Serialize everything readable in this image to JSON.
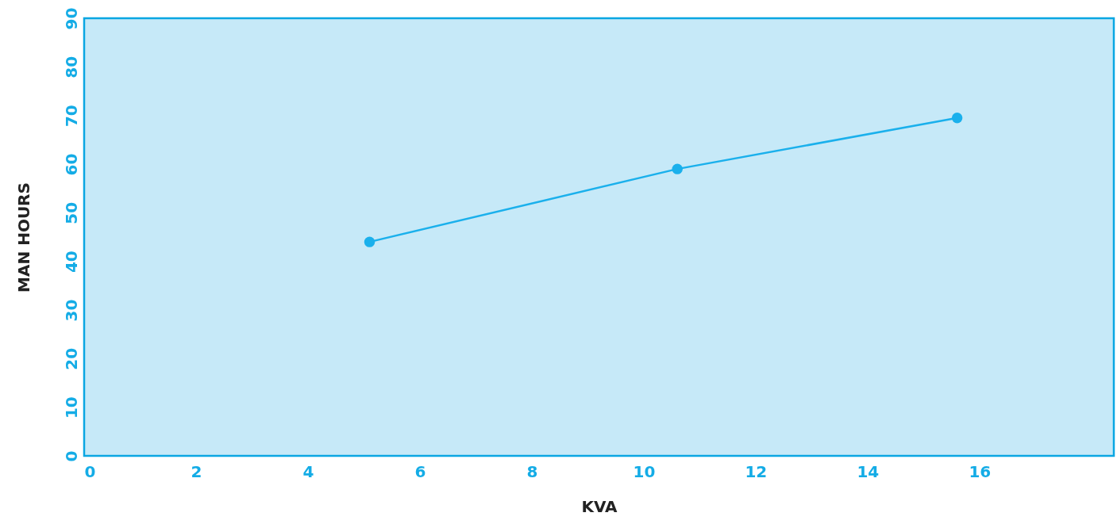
{
  "chart_data": {
    "type": "line",
    "xlabel": "KVA",
    "ylabel": "MAN HOURS",
    "x": [
      5.1,
      10.6,
      15.6
    ],
    "series": [
      {
        "color": "#1ab0ec",
        "values": [
          44,
          59,
          69.5
        ]
      }
    ],
    "xlim": [
      0,
      18.4
    ],
    "xticks": [
      0,
      2,
      4,
      6,
      8,
      10,
      12,
      14,
      16
    ],
    "ylim": [
      0,
      90
    ],
    "yticks": [
      0,
      10,
      20,
      30,
      40,
      50,
      60,
      70,
      80,
      90
    ],
    "marker": "circle"
  }
}
